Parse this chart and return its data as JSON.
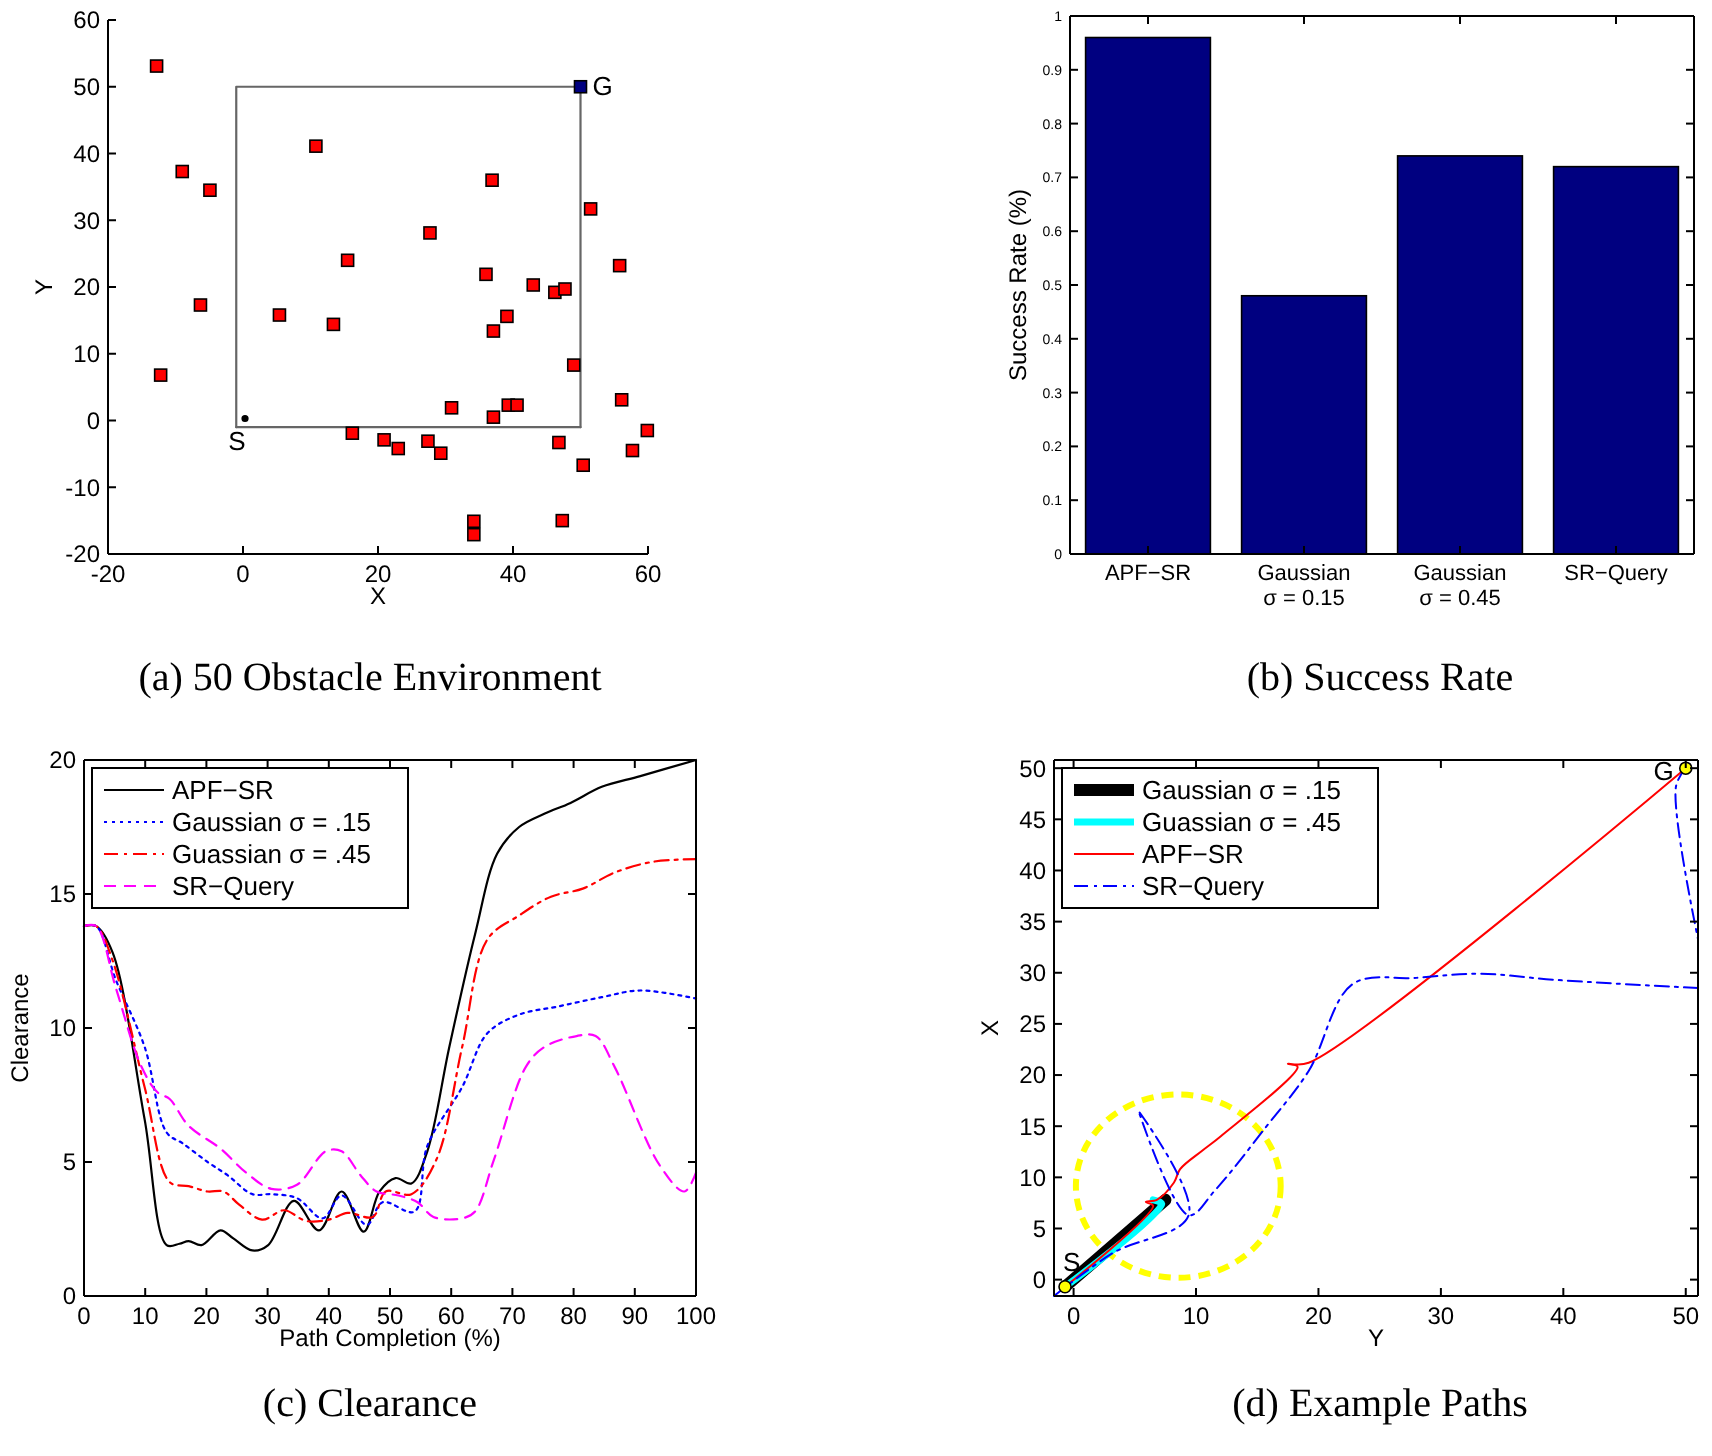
{
  "chart_data": [
    {
      "type": "scatter",
      "title": "(a) 50 Obstacle Environment",
      "xlabel": "X",
      "ylabel": "Y",
      "xlim": [
        -20,
        60
      ],
      "ylim": [
        -20,
        60
      ],
      "xticks": [
        -20,
        0,
        20,
        40,
        60
      ],
      "yticks": [
        -20,
        -10,
        0,
        10,
        20,
        30,
        40,
        50,
        60
      ],
      "series": [
        {
          "type": "line",
          "color": "#666666",
          "line_style": "solid",
          "x": [
            -1,
            -1,
            50,
            50
          ],
          "values": [
            -1,
            50,
            50,
            -1
          ]
        },
        {
          "type": "line",
          "color": "#666666",
          "line_style": "solid",
          "x": [
            -1,
            50
          ],
          "values": [
            -1,
            -1
          ]
        },
        {
          "type": "scatter",
          "color": "#ff0000",
          "marker": "square",
          "x": [
            -12.8,
            -9.0,
            -4.9,
            -6.3,
            -12.2,
            10.8,
            5.4,
            13.4,
            15.5,
            27.7,
            36.9,
            36.0,
            37.1,
            39.1,
            43.0,
            46.2,
            47.7,
            49.0,
            51.5,
            55.8,
            56.1,
            59.9,
            57.7,
            50.4,
            46.8,
            47.3,
            39.3,
            40.6,
            37.1,
            30.9,
            16.2,
            20.9,
            23.0,
            27.4,
            29.3,
            34.2,
            34.2
          ],
          "values": [
            53.1,
            37.3,
            34.5,
            17.3,
            6.8,
            41.1,
            15.8,
            14.4,
            24.0,
            28.1,
            36.0,
            21.9,
            13.4,
            15.6,
            20.3,
            19.2,
            19.7,
            8.3,
            31.7,
            23.2,
            3.1,
            -1.5,
            -4.5,
            -6.7,
            -3.3,
            -15.0,
            2.3,
            2.3,
            0.5,
            1.9,
            -1.9,
            -2.9,
            -4.2,
            -3.1,
            -4.9,
            -15.1,
            -17.1
          ]
        },
        {
          "type": "scatter",
          "color": "#000000",
          "marker": "circle",
          "x": [
            0.3
          ],
          "values": [
            0.3
          ]
        },
        {
          "type": "scatter",
          "color": "#000080",
          "marker": "square",
          "x": [
            50
          ],
          "values": [
            50
          ]
        }
      ],
      "annotations": [
        {
          "text": "S",
          "x": 0.3,
          "y": 0.3
        },
        {
          "text": "G",
          "x": 50,
          "y": 50
        }
      ]
    },
    {
      "type": "bar",
      "title": "(b) Success Rate",
      "ylabel": "Success Rate (%)",
      "categories": [
        "APF−SR",
        "Gaussian\nσ = 0.15",
        "Gaussian\nσ = 0.45",
        "SR−Query"
      ],
      "values": [
        0.96,
        0.48,
        0.74,
        0.72
      ],
      "color": "#000080",
      "ylim": [
        0,
        1
      ],
      "yticks": [
        0,
        0.1,
        0.2,
        0.3,
        0.4,
        0.5,
        0.6,
        0.7,
        0.8,
        0.9,
        1
      ]
    },
    {
      "type": "line",
      "title": "(c) Clearance",
      "xlabel": "Path Completion (%)",
      "ylabel": "Clearance",
      "xlim": [
        0,
        100
      ],
      "ylim": [
        0,
        20
      ],
      "xticks": [
        0,
        10,
        20,
        30,
        40,
        50,
        60,
        70,
        80,
        90,
        100
      ],
      "yticks": [
        0,
        5,
        10,
        15,
        20
      ],
      "legend": "top left",
      "series": [
        {
          "name": "APF−SR",
          "color": "#000000",
          "line_style": "solid",
          "x": [
            0,
            2,
            4.7,
            9.9,
            13.5,
            15.6,
            17.1,
            19.2,
            22.3,
            24.4,
            27.5,
            30.1,
            34.3,
            38.4,
            42.1,
            45.7,
            48.3,
            50.9,
            53.5,
            56.1,
            59.7,
            63.9,
            67.5,
            71.1,
            75.3,
            79.5,
            84.6,
            90.9,
            100
          ],
          "values": [
            13.8,
            13.8,
            12.8,
            6.6,
            1.9,
            1.95,
            2.05,
            1.9,
            2.45,
            2.15,
            1.7,
            1.9,
            3.55,
            2.45,
            3.9,
            2.4,
            3.9,
            4.4,
            4.2,
            5.4,
            9.3,
            13.5,
            16.5,
            17.5,
            18.0,
            18.4,
            19.0,
            19.4,
            20
          ]
        },
        {
          "name": "Gaussian σ = .15",
          "color": "#0000ff",
          "line_style": "dotted",
          "x": [
            0,
            2,
            5.2,
            9.9,
            13.5,
            16.1,
            20.2,
            23.5,
            27.5,
            30.6,
            34.8,
            39,
            42.1,
            46.2,
            48.8,
            54,
            56.1,
            61.8,
            65.9,
            71.1,
            77.4,
            84.6,
            90.9,
            100
          ],
          "values": [
            13.8,
            13.8,
            11.8,
            9.3,
            6.1,
            5.7,
            5.0,
            4.5,
            3.8,
            3.8,
            3.65,
            2.9,
            3.75,
            2.65,
            3.5,
            3.15,
            5.6,
            7.8,
            9.8,
            10.5,
            10.8,
            11.15,
            11.4,
            11.1
          ]
        },
        {
          "name": "Guassian σ = .45",
          "color": "#ff0000",
          "line_style": "dashdot",
          "x": [
            0,
            2,
            4.7,
            9.9,
            14,
            17.1,
            20.2,
            22.8,
            25.4,
            29.1,
            32.7,
            36.3,
            40,
            43.1,
            47.2,
            49.3,
            53.5,
            57.6,
            61.8,
            65.9,
            71.1,
            76.3,
            81.5,
            86.7,
            92.9,
            100
          ],
          "values": [
            13.8,
            13.8,
            12.5,
            7.8,
            4.25,
            4.1,
            3.9,
            3.9,
            3.4,
            2.85,
            3.2,
            2.8,
            2.85,
            3.1,
            2.95,
            3.9,
            3.8,
            5.1,
            9.3,
            13.3,
            14.2,
            14.9,
            15.2,
            15.8,
            16.2,
            16.3
          ]
        },
        {
          "name": "SR−Query",
          "color": "#ff00ff",
          "line_style": "dashed",
          "x": [
            0,
            2,
            5.2,
            9.3,
            12,
            14,
            17.1,
            22.3,
            26.5,
            30.6,
            34.8,
            39.5,
            42.1,
            45.2,
            47.8,
            51.4,
            54.5,
            57.1,
            61.8,
            63.9,
            67,
            72.2,
            75.3,
            80.5,
            83.6,
            86.7,
            94,
            98.1,
            100
          ],
          "values": [
            13.8,
            13.8,
            11.5,
            8.6,
            7.6,
            7.35,
            6.35,
            5.5,
            4.6,
            4.0,
            4.15,
            5.4,
            5.4,
            4.5,
            3.9,
            3.75,
            3.5,
            2.95,
            2.9,
            3.15,
            5.1,
            8.55,
            9.3,
            9.7,
            9.7,
            8.55,
            4.9,
            3.9,
            4.6
          ]
        }
      ]
    },
    {
      "type": "line",
      "title": "(d) Example Paths",
      "xlabel": "Y",
      "ylabel": "X",
      "xlim": [
        -1.6,
        51
      ],
      "ylim": [
        -1.6,
        50.8
      ],
      "xticks": [
        0,
        10,
        20,
        30,
        40,
        50
      ],
      "yticks": [
        0,
        5,
        10,
        15,
        20,
        25,
        30,
        35,
        40,
        45,
        50
      ],
      "legend": "top left",
      "series": [
        {
          "name": "Gaussian σ = .15",
          "color": "#000000",
          "line_style": "solid",
          "x": [
            -0.7,
            7.5
          ],
          "values": [
            -0.7,
            7.8
          ]
        },
        {
          "name": "Guassian σ = .45",
          "color": "#00ffff",
          "line_style": "solid",
          "x": [
            -0.7,
            7.2,
            6.5
          ],
          "values": [
            -0.7,
            7.4,
            7.8
          ]
        },
        {
          "name": "APF−SR",
          "color": "#ff0000",
          "line_style": "solid",
          "x": [
            -0.7,
            6.5,
            5.9,
            6.8,
            8.2,
            8.7,
            10.5,
            12,
            18.3,
            17.5,
            19.2,
            50
          ],
          "values": [
            -0.7,
            7.2,
            7.6,
            7.8,
            9.5,
            10.8,
            12.6,
            14,
            20.8,
            21.1,
            21.2,
            50
          ]
        },
        {
          "name": "SR−Query",
          "color": "#0000ff",
          "line_style": "dashdot",
          "x": [
            -1.6,
            3.2,
            9.4,
            5.3,
            9.4,
            11.6,
            15.7,
            19.2,
            22.8,
            28,
            33.2,
            39.4,
            51,
            null,
            50,
            49.2,
            51
          ],
          "values": [
            -1.6,
            2.6,
            6.3,
            16.5,
            6.3,
            8.8,
            14.9,
            20.4,
            28.9,
            29.5,
            29.9,
            29.3,
            28.5,
            null,
            50,
            48.2,
            33.3
          ]
        },
        {
          "type": "scatter",
          "color": "#ffff00",
          "marker": "circle",
          "x": [
            -0.7,
            50
          ],
          "values": [
            -0.7,
            50
          ]
        }
      ],
      "annotations": [
        {
          "text": "S",
          "x": -0.7,
          "y": -0.7
        },
        {
          "text": "G",
          "x": 50,
          "y": 50
        }
      ]
    }
  ]
}
